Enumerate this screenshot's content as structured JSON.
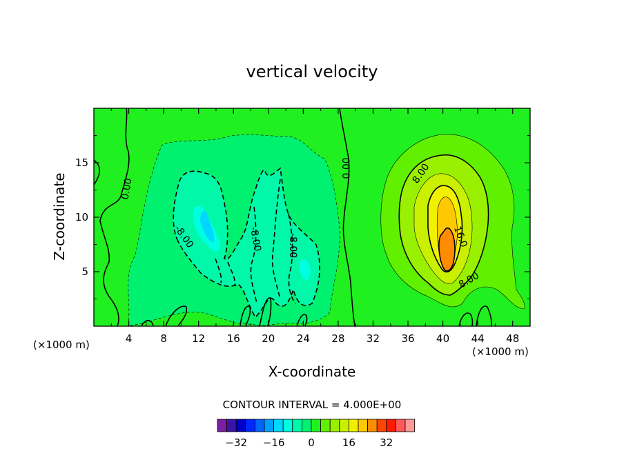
{
  "chart_data": {
    "type": "contour",
    "title": "vertical velocity",
    "xlabel": "X-coordinate",
    "ylabel": "Z-coordinate",
    "x_units": "(×1000 m)",
    "z_units": "(×1000 m)",
    "xlim": [
      0,
      50
    ],
    "ylim": [
      0,
      20
    ],
    "x_ticks": [
      4,
      8,
      12,
      16,
      20,
      24,
      28,
      32,
      36,
      40,
      44,
      48
    ],
    "y_ticks": [
      5,
      10,
      15
    ],
    "contour_interval_text": "CONTOUR INTERVAL = 4.000E+00",
    "contour_labels": [
      {
        "text": "0.00",
        "x": 3.8,
        "z": 12.6,
        "angle": -80
      },
      {
        "text": "0.00",
        "x": 29.0,
        "z": 14.5,
        "angle": -90
      },
      {
        "text": "8.00",
        "x": 37.5,
        "z": 14.0,
        "angle": -55
      },
      {
        "text": "16.0",
        "x": 42.0,
        "z": 8.2,
        "angle": 70
      },
      {
        "text": "8.00",
        "x": 43.0,
        "z": 4.2,
        "angle": -30
      },
      {
        "text": "-8.00",
        "x": 10.3,
        "z": 8.2,
        "angle": 55
      },
      {
        "text": "-8.00",
        "x": 18.5,
        "z": 8.0,
        "angle": 80
      },
      {
        "text": "-8.00",
        "x": 22.8,
        "z": 7.4,
        "angle": 90
      }
    ],
    "colorbar": {
      "ticks": [
        "-32",
        "-16",
        "0",
        "16",
        "32"
      ],
      "levels": [
        -40,
        -36,
        -32,
        -28,
        -24,
        -20,
        -16,
        -12,
        -8,
        -4,
        0,
        4,
        8,
        12,
        16,
        20,
        24,
        28,
        32,
        36,
        40
      ],
      "colors": [
        "#7a1fa0",
        "#3a14a6",
        "#0000c8",
        "#0028ff",
        "#0064ff",
        "#00a0ff",
        "#00d7ff",
        "#00ffe0",
        "#00f8a8",
        "#00f070",
        "#20f020",
        "#60f000",
        "#99f000",
        "#c8f000",
        "#f0f000",
        "#ffc800",
        "#ff8c00",
        "#ff4600",
        "#ff1a00",
        "#ff5a5a",
        "#ff9a9a"
      ]
    },
    "fill_colors": {
      "background": "#20f020",
      "neg4": "#00f070",
      "neg8": "#00f8a8",
      "neg12": "#00ffe0",
      "neg16": "#00d7ff",
      "pos4": "#60f000",
      "pos8": "#99f000",
      "pos12": "#c8f000",
      "pos16": "#f0f000",
      "pos20": "#ffc800",
      "pos24": "#ff8c00"
    }
  }
}
